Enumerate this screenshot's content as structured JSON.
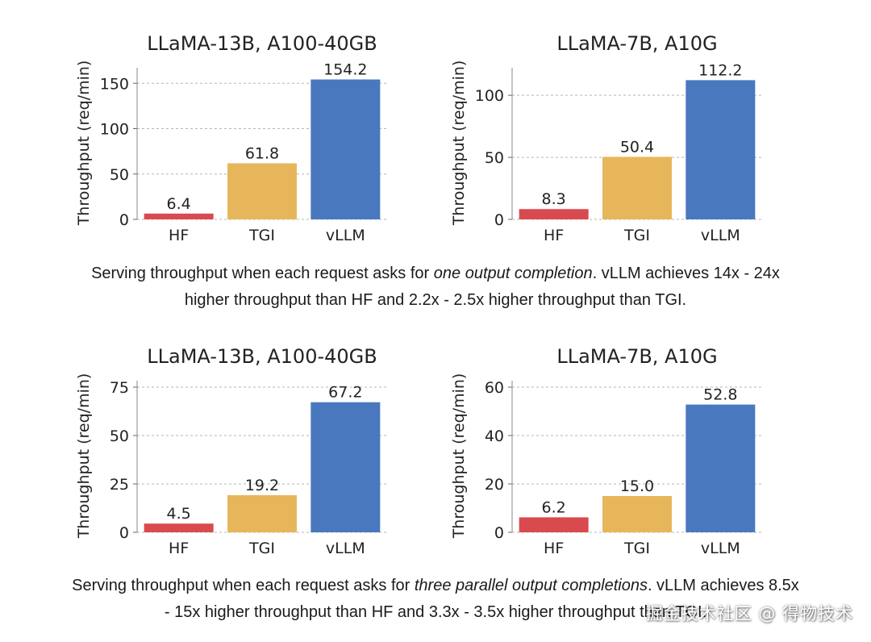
{
  "colors": {
    "HF": "#d94a4f",
    "TGI": "#e8b65a",
    "vLLM": "#4a78bf",
    "grid": "#b5b5b5"
  },
  "chart_data": [
    {
      "type": "bar",
      "title": "LLaMA-13B, A100-40GB",
      "ylabel": "Throughput (req/min)",
      "categories": [
        "HF",
        "TGI",
        "vLLM"
      ],
      "values": [
        6.4,
        61.8,
        154.2
      ],
      "value_labels": [
        "6.4",
        "61.8",
        "154.2"
      ],
      "yticks": [
        0,
        50,
        100,
        150
      ],
      "ylim": [
        0,
        160
      ]
    },
    {
      "type": "bar",
      "title": "LLaMA-7B, A10G",
      "ylabel": "Throughput (req/min)",
      "categories": [
        "HF",
        "TGI",
        "vLLM"
      ],
      "values": [
        8.3,
        50.4,
        112.2
      ],
      "value_labels": [
        "8.3",
        "50.4",
        "112.2"
      ],
      "yticks": [
        0,
        50,
        100
      ],
      "ylim": [
        0,
        117
      ]
    },
    {
      "type": "bar",
      "title": "LLaMA-13B, A100-40GB",
      "ylabel": "Throughput (req/min)",
      "categories": [
        "HF",
        "TGI",
        "vLLM"
      ],
      "values": [
        4.5,
        19.2,
        67.2
      ],
      "value_labels": [
        "4.5",
        "19.2",
        "67.2"
      ],
      "yticks": [
        0,
        25,
        50,
        75
      ],
      "ylim": [
        0,
        75
      ]
    },
    {
      "type": "bar",
      "title": "LLaMA-7B, A10G",
      "ylabel": "Throughput (req/min)",
      "categories": [
        "HF",
        "TGI",
        "vLLM"
      ],
      "values": [
        6.2,
        15.0,
        52.8
      ],
      "value_labels": [
        "6.2",
        "15.0",
        "52.8"
      ],
      "yticks": [
        0,
        20,
        40,
        60
      ],
      "ylim": [
        0,
        60
      ]
    }
  ],
  "captions": {
    "top": {
      "pre": "Serving throughput when each request asks for ",
      "em": "one output completion",
      "post": ". vLLM achieves 14x - 24x",
      "line2": "higher throughput than HF and 2.2x - 2.5x higher throughput than TGI."
    },
    "bottom": {
      "pre": "Serving throughput when each request asks for ",
      "em": "three parallel output completions",
      "post": ". vLLM achieves 8.5x",
      "line2": "- 15x higher throughput than HF and 3.3x - 3.5x higher throughput than TGI."
    }
  },
  "watermark": "掘金技术社区 @ 得物技术"
}
